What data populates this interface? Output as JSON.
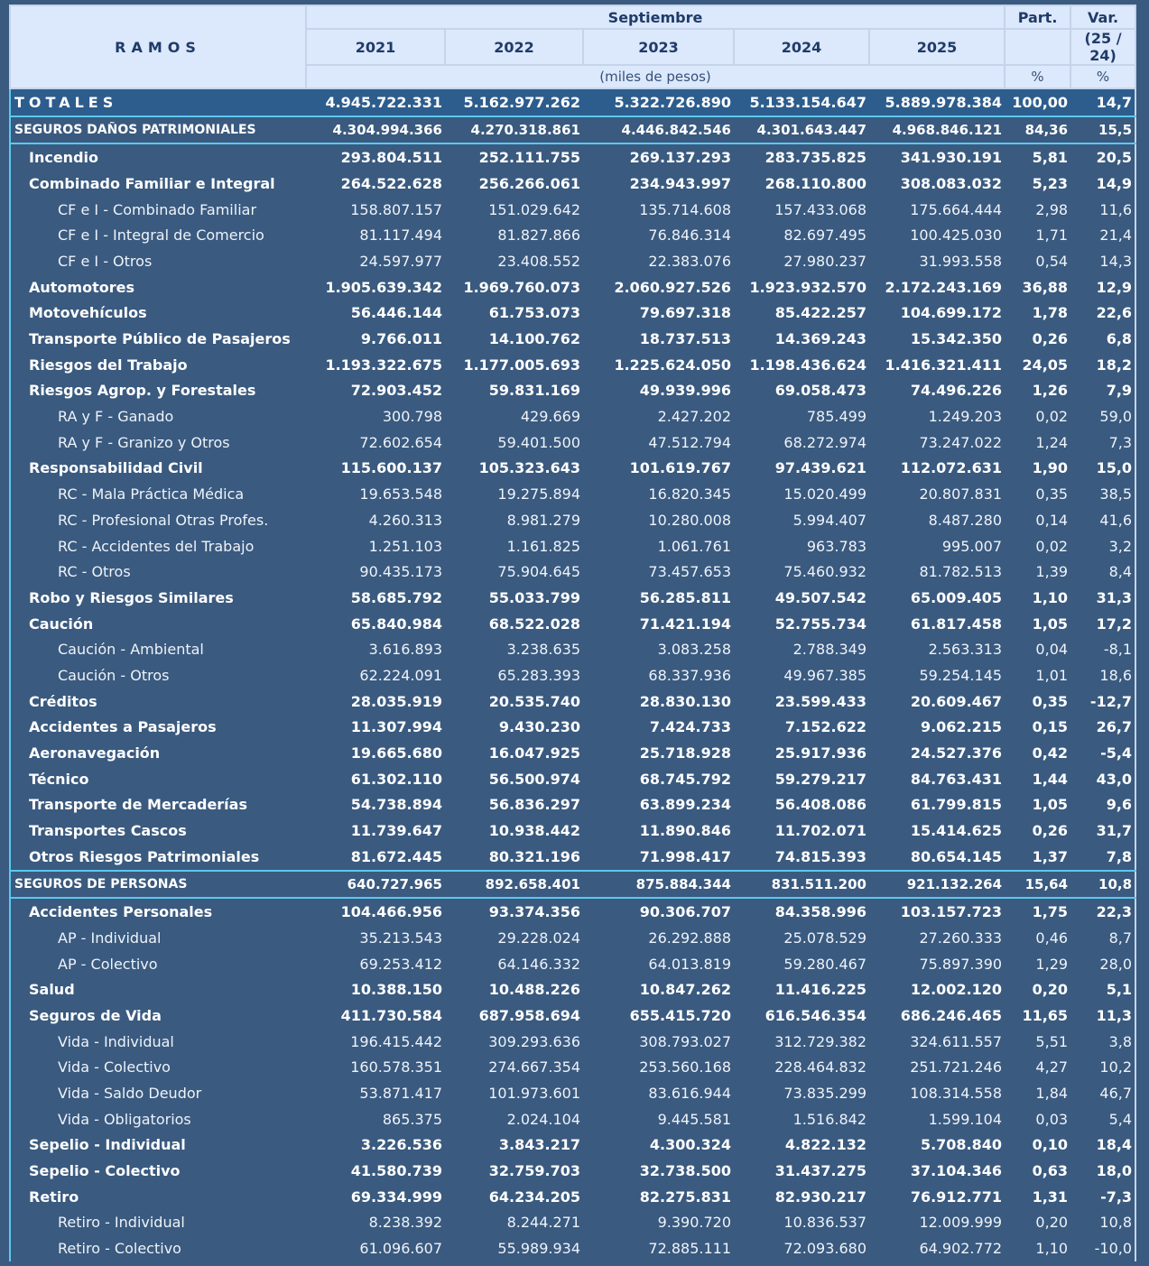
{
  "header": {
    "ramos": "RAMOS",
    "period": "Septiembre",
    "years": [
      "2021",
      "2022",
      "2023",
      "2024",
      "2025"
    ],
    "part": "Part.",
    "var": "Var.",
    "var_sub": "(25 / 24)",
    "units": "(miles de pesos)",
    "part_unit": "%",
    "var_unit": "%"
  },
  "table": {
    "total": [
      "TOTALES",
      "4.945.722.331",
      "5.162.977.262",
      "5.322.726.890",
      "5.133.154.647",
      "5.889.978.384",
      "100,00",
      "14,7"
    ],
    "sections": [
      {
        "row": [
          "SEGUROS DAÑOS PATRIMONIALES",
          "4.304.994.366",
          "4.270.318.861",
          "4.446.842.546",
          "4.301.643.447",
          "4.968.846.121",
          "84,36",
          "15,5"
        ],
        "items": [
          {
            "row": [
              "Incendio",
              "293.804.511",
              "252.111.755",
              "269.137.293",
              "283.735.825",
              "341.930.191",
              "5,81",
              "20,5"
            ]
          },
          {
            "row": [
              "Combinado Familiar e Integral",
              "264.522.628",
              "256.266.061",
              "234.943.997",
              "268.110.800",
              "308.083.032",
              "5,23",
              "14,9"
            ],
            "sub": [
              [
                "CF e I - Combinado Familiar",
                "158.807.157",
                "151.029.642",
                "135.714.608",
                "157.433.068",
                "175.664.444",
                "2,98",
                "11,6"
              ],
              [
                "CF e I - Integral de Comercio",
                "81.117.494",
                "81.827.866",
                "76.846.314",
                "82.697.495",
                "100.425.030",
                "1,71",
                "21,4"
              ],
              [
                "CF e I - Otros",
                "24.597.977",
                "23.408.552",
                "22.383.076",
                "27.980.237",
                "31.993.558",
                "0,54",
                "14,3"
              ]
            ]
          },
          {
            "row": [
              "Automotores",
              "1.905.639.342",
              "1.969.760.073",
              "2.060.927.526",
              "1.923.932.570",
              "2.172.243.169",
              "36,88",
              "12,9"
            ]
          },
          {
            "row": [
              "Motovehículos",
              "56.446.144",
              "61.753.073",
              "79.697.318",
              "85.422.257",
              "104.699.172",
              "1,78",
              "22,6"
            ]
          },
          {
            "row": [
              "Transporte Público de Pasajeros",
              "9.766.011",
              "14.100.762",
              "18.737.513",
              "14.369.243",
              "15.342.350",
              "0,26",
              "6,8"
            ]
          },
          {
            "row": [
              "Riesgos del Trabajo",
              "1.193.322.675",
              "1.177.005.693",
              "1.225.624.050",
              "1.198.436.624",
              "1.416.321.411",
              "24,05",
              "18,2"
            ]
          },
          {
            "row": [
              "Riesgos Agrop. y Forestales",
              "72.903.452",
              "59.831.169",
              "49.939.996",
              "69.058.473",
              "74.496.226",
              "1,26",
              "7,9"
            ],
            "sub": [
              [
                "RA y F - Ganado",
                "300.798",
                "429.669",
                "2.427.202",
                "785.499",
                "1.249.203",
                "0,02",
                "59,0"
              ],
              [
                "RA y F - Granizo y Otros",
                "72.602.654",
                "59.401.500",
                "47.512.794",
                "68.272.974",
                "73.247.022",
                "1,24",
                "7,3"
              ]
            ]
          },
          {
            "row": [
              "Responsabilidad Civil",
              "115.600.137",
              "105.323.643",
              "101.619.767",
              "97.439.621",
              "112.072.631",
              "1,90",
              "15,0"
            ],
            "sub": [
              [
                "RC - Mala Práctica Médica",
                "19.653.548",
                "19.275.894",
                "16.820.345",
                "15.020.499",
                "20.807.831",
                "0,35",
                "38,5"
              ],
              [
                "RC - Profesional Otras Profes.",
                "4.260.313",
                "8.981.279",
                "10.280.008",
                "5.994.407",
                "8.487.280",
                "0,14",
                "41,6"
              ],
              [
                "RC - Accidentes del Trabajo",
                "1.251.103",
                "1.161.825",
                "1.061.761",
                "963.783",
                "995.007",
                "0,02",
                "3,2"
              ],
              [
                "RC - Otros",
                "90.435.173",
                "75.904.645",
                "73.457.653",
                "75.460.932",
                "81.782.513",
                "1,39",
                "8,4"
              ]
            ]
          },
          {
            "row": [
              "Robo y Riesgos Similares",
              "58.685.792",
              "55.033.799",
              "56.285.811",
              "49.507.542",
              "65.009.405",
              "1,10",
              "31,3"
            ]
          },
          {
            "row": [
              "Caución",
              "65.840.984",
              "68.522.028",
              "71.421.194",
              "52.755.734",
              "61.817.458",
              "1,05",
              "17,2"
            ],
            "sub": [
              [
                "Caución - Ambiental",
                "3.616.893",
                "3.238.635",
                "3.083.258",
                "2.788.349",
                "2.563.313",
                "0,04",
                "-8,1"
              ],
              [
                "Caución - Otros",
                "62.224.091",
                "65.283.393",
                "68.337.936",
                "49.967.385",
                "59.254.145",
                "1,01",
                "18,6"
              ]
            ]
          },
          {
            "row": [
              "Créditos",
              "28.035.919",
              "20.535.740",
              "28.830.130",
              "23.599.433",
              "20.609.467",
              "0,35",
              "-12,7"
            ]
          },
          {
            "row": [
              "Accidentes a Pasajeros",
              "11.307.994",
              "9.430.230",
              "7.424.733",
              "7.152.622",
              "9.062.215",
              "0,15",
              "26,7"
            ]
          },
          {
            "row": [
              "Aeronavegación",
              "19.665.680",
              "16.047.925",
              "25.718.928",
              "25.917.936",
              "24.527.376",
              "0,42",
              "-5,4"
            ]
          },
          {
            "row": [
              "Técnico",
              "61.302.110",
              "56.500.974",
              "68.745.792",
              "59.279.217",
              "84.763.431",
              "1,44",
              "43,0"
            ]
          },
          {
            "row": [
              "Transporte de Mercaderías",
              "54.738.894",
              "56.836.297",
              "63.899.234",
              "56.408.086",
              "61.799.815",
              "1,05",
              "9,6"
            ]
          },
          {
            "row": [
              "Transportes Cascos",
              "11.739.647",
              "10.938.442",
              "11.890.846",
              "11.702.071",
              "15.414.625",
              "0,26",
              "31,7"
            ]
          },
          {
            "row": [
              "Otros Riesgos Patrimoniales",
              "81.672.445",
              "80.321.196",
              "71.998.417",
              "74.815.393",
              "80.654.145",
              "1,37",
              "7,8"
            ]
          }
        ]
      },
      {
        "row": [
          "SEGUROS DE PERSONAS",
          "640.727.965",
          "892.658.401",
          "875.884.344",
          "831.511.200",
          "921.132.264",
          "15,64",
          "10,8"
        ],
        "items": [
          {
            "row": [
              "Accidentes Personales",
              "104.466.956",
              "93.374.356",
              "90.306.707",
              "84.358.996",
              "103.157.723",
              "1,75",
              "22,3"
            ],
            "sub": [
              [
                "AP - Individual",
                "35.213.543",
                "29.228.024",
                "26.292.888",
                "25.078.529",
                "27.260.333",
                "0,46",
                "8,7"
              ],
              [
                "AP - Colectivo",
                "69.253.412",
                "64.146.332",
                "64.013.819",
                "59.280.467",
                "75.897.390",
                "1,29",
                "28,0"
              ]
            ]
          },
          {
            "row": [
              "Salud",
              "10.388.150",
              "10.488.226",
              "10.847.262",
              "11.416.225",
              "12.002.120",
              "0,20",
              "5,1"
            ]
          },
          {
            "row": [
              "Seguros de Vida",
              "411.730.584",
              "687.958.694",
              "655.415.720",
              "616.546.354",
              "686.246.465",
              "11,65",
              "11,3"
            ],
            "sub": [
              [
                "Vida - Individual",
                "196.415.442",
                "309.293.636",
                "308.793.027",
                "312.729.382",
                "324.611.557",
                "5,51",
                "3,8"
              ],
              [
                "Vida - Colectivo",
                "160.578.351",
                "274.667.354",
                "253.560.168",
                "228.464.832",
                "251.721.246",
                "4,27",
                "10,2"
              ],
              [
                "Vida - Saldo Deudor",
                "53.871.417",
                "101.973.601",
                "83.616.944",
                "73.835.299",
                "108.314.558",
                "1,84",
                "46,7"
              ],
              [
                "Vida - Obligatorios",
                "865.375",
                "2.024.104",
                "9.445.581",
                "1.516.842",
                "1.599.104",
                "0,03",
                "5,4"
              ]
            ]
          },
          {
            "row": [
              "Sepelio - Individual",
              "3.226.536",
              "3.843.217",
              "4.300.324",
              "4.822.132",
              "5.708.840",
              "0,10",
              "18,4"
            ]
          },
          {
            "row": [
              "Sepelio - Colectivo",
              "41.580.739",
              "32.759.703",
              "32.738.500",
              "31.437.275",
              "37.104.346",
              "0,63",
              "18,0"
            ]
          },
          {
            "row": [
              "Retiro",
              "69.334.999",
              "64.234.205",
              "82.275.831",
              "82.930.217",
              "76.912.771",
              "1,31",
              "-7,3"
            ],
            "sub": [
              [
                "Retiro - Individual",
                "8.238.392",
                "8.244.271",
                "9.390.720",
                "10.836.537",
                "12.009.999",
                "0,20",
                "10,8"
              ],
              [
                "Retiro - Colectivo",
                "61.096.607",
                "55.989.934",
                "72.885.111",
                "72.093.680",
                "64.902.772",
                "1,10",
                "-10,0"
              ]
            ]
          }
        ]
      }
    ]
  }
}
